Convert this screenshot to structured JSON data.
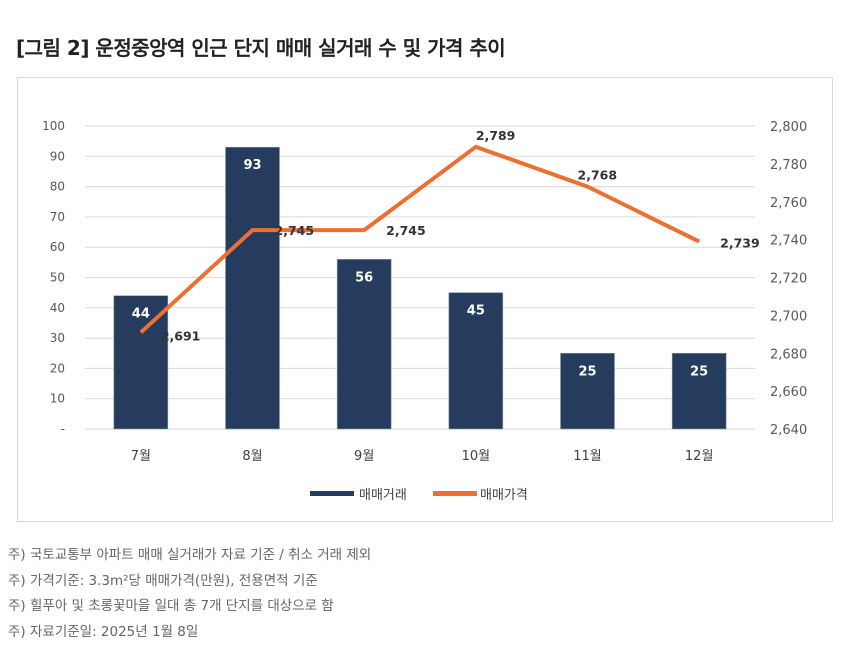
{
  "title": "[그림 2] 운정중앙역 인근 단지 매매 실거래 수 및 가격 추이",
  "chart_data": {
    "type": "bar+line",
    "categories": [
      "7월",
      "8월",
      "9월",
      "10월",
      "11월",
      "12월"
    ],
    "series": [
      {
        "name": "매매거래",
        "type": "bar",
        "axis": "left",
        "values": [
          44,
          93,
          56,
          45,
          25,
          25
        ],
        "color": "#253c5f"
      },
      {
        "name": "매매가격",
        "type": "line",
        "axis": "right",
        "values": [
          2691,
          2745,
          2745,
          2789,
          2768,
          2739
        ],
        "color": "#ec7030"
      }
    ],
    "left_axis": {
      "ylim": [
        0,
        100
      ],
      "ticks": [
        "-",
        "10",
        "20",
        "30",
        "40",
        "50",
        "60",
        "70",
        "80",
        "90",
        "100"
      ]
    },
    "right_axis": {
      "ylim": [
        2640,
        2800
      ],
      "ticks": [
        "2,640",
        "2,660",
        "2,680",
        "2,700",
        "2,720",
        "2,740",
        "2,760",
        "2,780",
        "2,800"
      ]
    },
    "grid": true,
    "legend": "bottom"
  },
  "notes": [
    "주) 국토교통부 아파트 매매 실거래가 자료 기준 / 취소 거래 제외",
    "주) 가격기준: 3.3m²당 매매가격(만원), 전용면적 기준",
    "주) 힐푸아 및 초롱꽃마을 일대 총 7개 단지를 대상으로 함",
    "주) 자료기준일: 2025년 1월 8일"
  ]
}
